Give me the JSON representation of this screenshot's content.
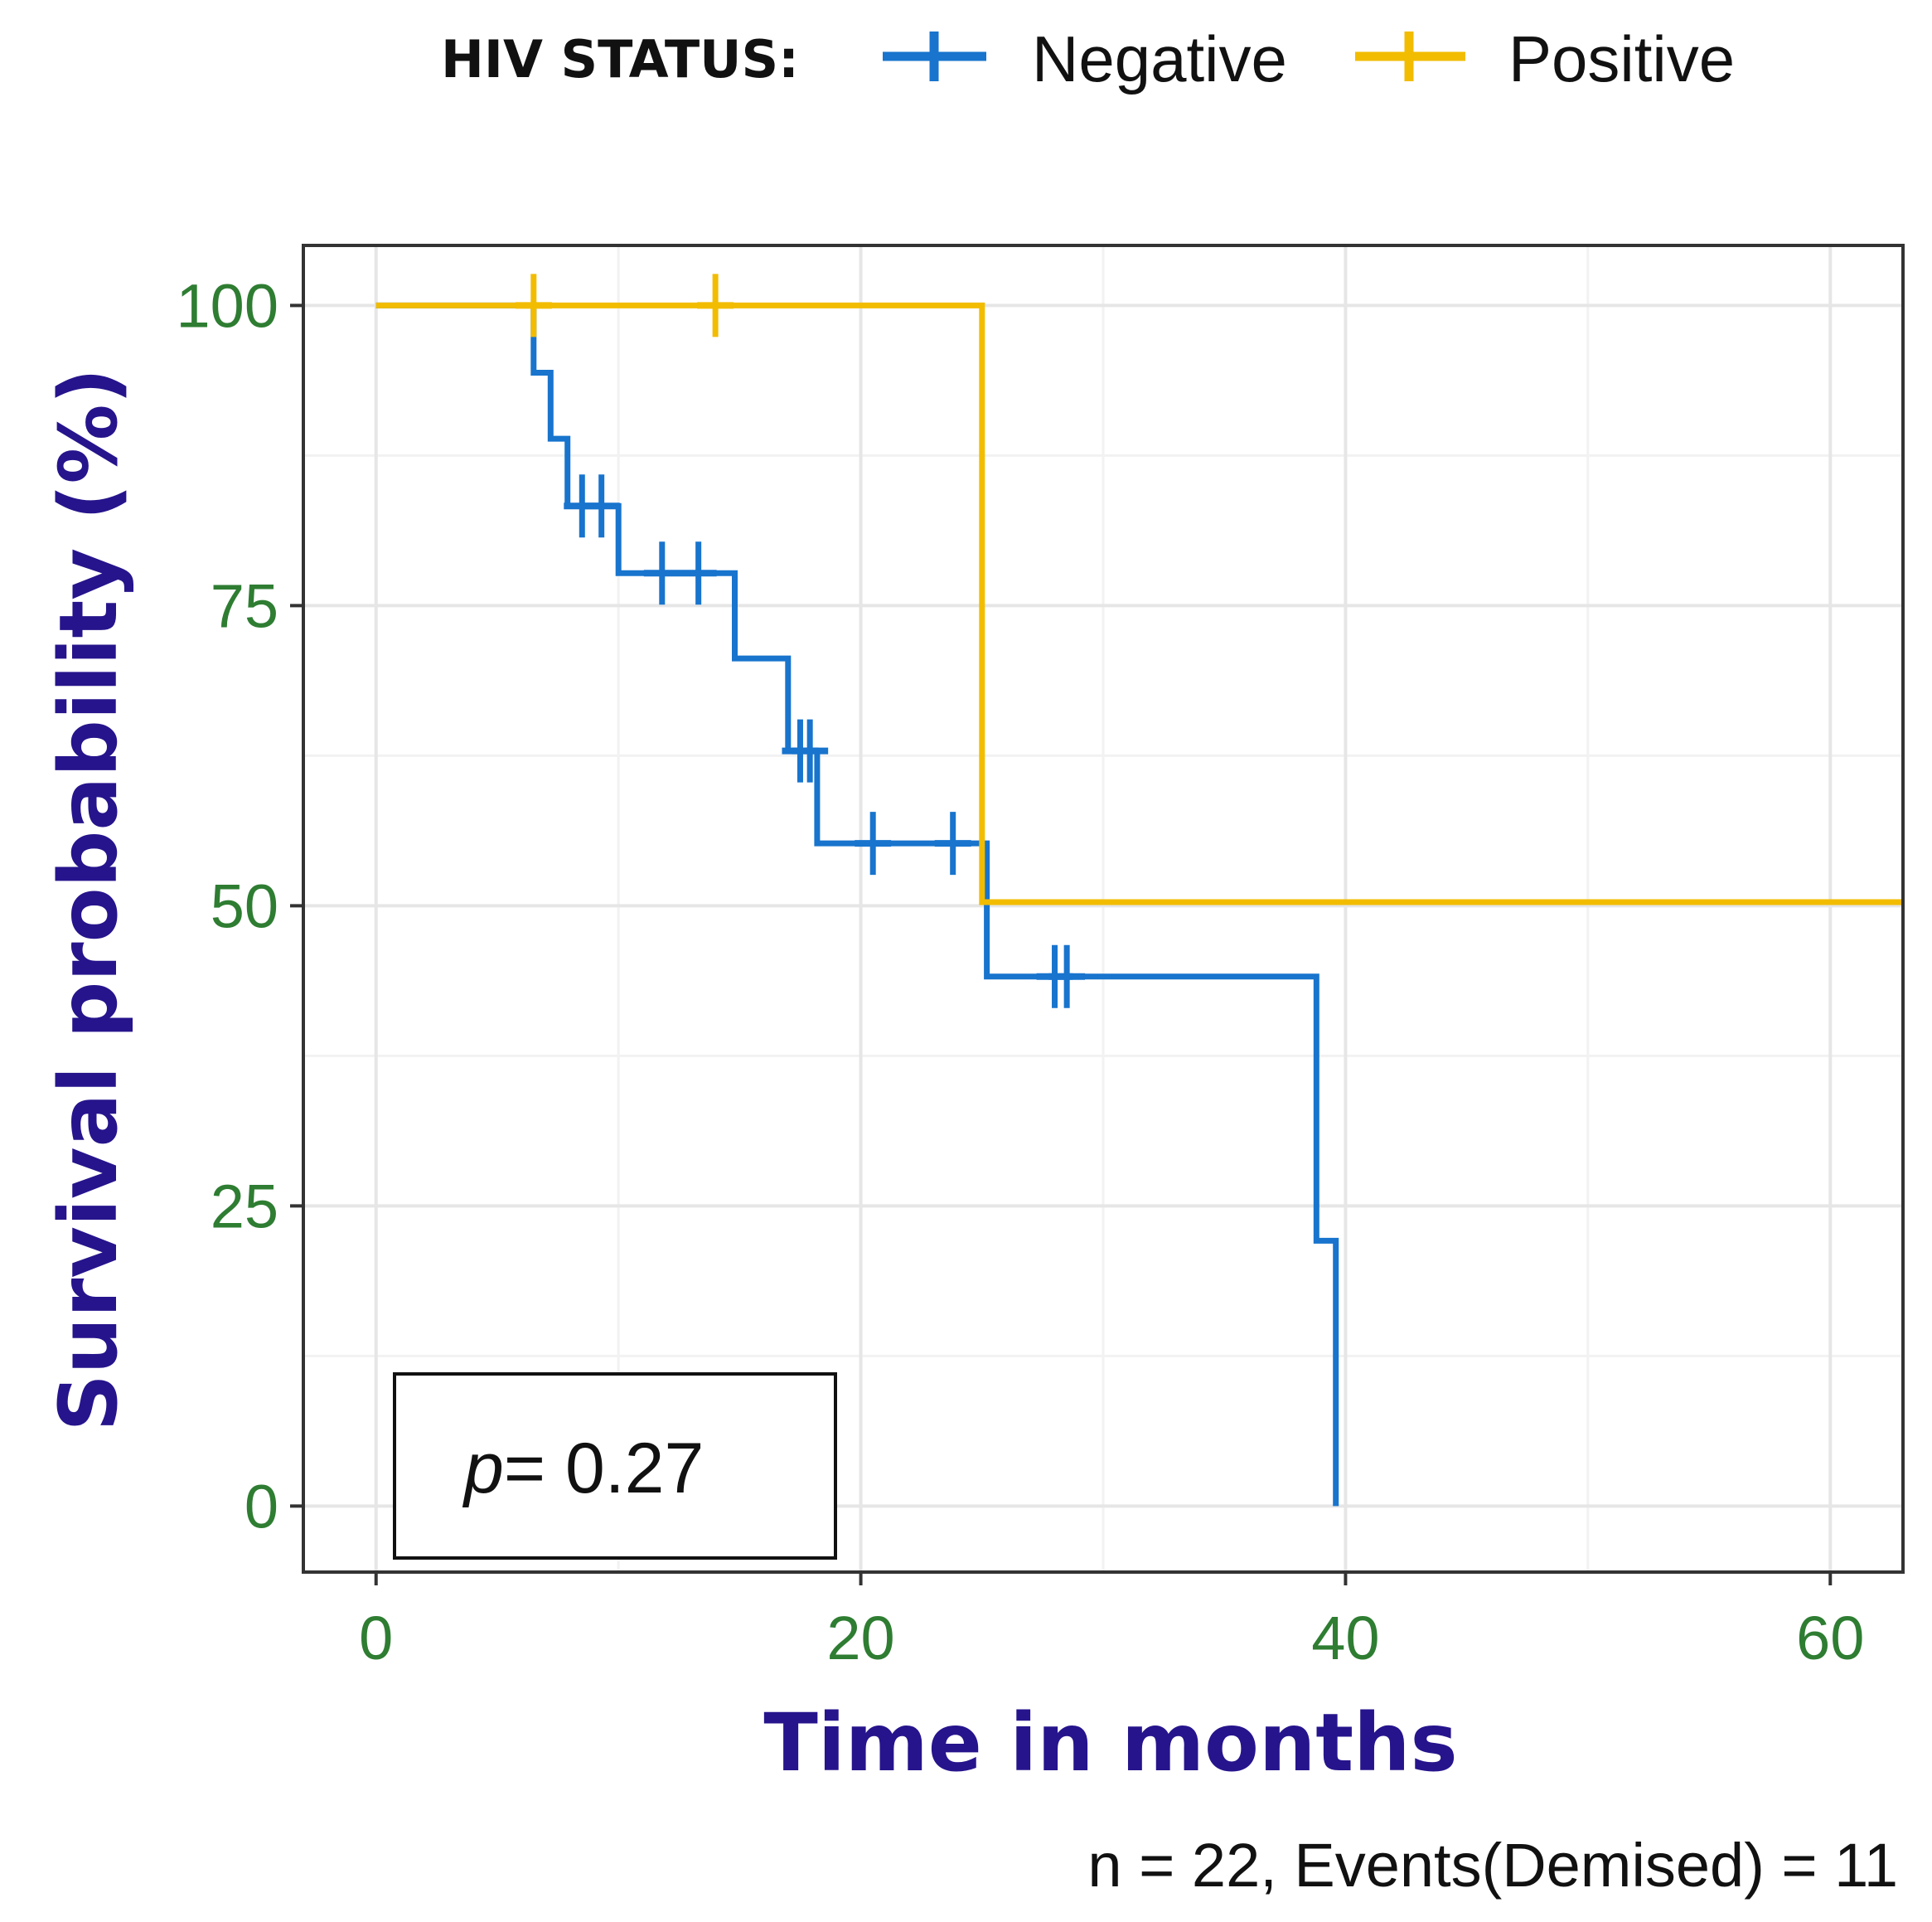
{
  "colors": {
    "negative": "#1874cd",
    "positive": "#f2bc00"
  },
  "chart_data": {
    "type": "line",
    "subtype": "kaplan-meier",
    "legend_title": "HIV STATUS:",
    "legend_position": "top",
    "xlabel": "Time in months",
    "ylabel": "Survival probability (%)",
    "xlim": [
      -3,
      63
    ],
    "ylim": [
      -5.5,
      105
    ],
    "x_ticks": [
      0,
      20,
      40,
      60
    ],
    "y_ticks": [
      0,
      25,
      50,
      75,
      100
    ],
    "grid": true,
    "caption": "n = 22, Events(Demised) = 11",
    "pvalue": {
      "label": "p",
      "text": "= 0.27"
    },
    "series": [
      {
        "name": "Negative",
        "color_key": "negative",
        "steps": [
          [
            0,
            100
          ],
          [
            6.5,
            100
          ],
          [
            6.5,
            94.4
          ],
          [
            7.2,
            94.4
          ],
          [
            7.2,
            88.9
          ],
          [
            7.9,
            88.9
          ],
          [
            7.9,
            83.3
          ],
          [
            10,
            83.3
          ],
          [
            10,
            77.7
          ],
          [
            14.8,
            77.7
          ],
          [
            14.8,
            70.6
          ],
          [
            17,
            70.6
          ],
          [
            17,
            62.9
          ],
          [
            18.2,
            62.9
          ],
          [
            18.2,
            55.2
          ],
          [
            25.2,
            55.2
          ],
          [
            25.2,
            44.1
          ],
          [
            38.8,
            44.1
          ],
          [
            38.8,
            22.1
          ],
          [
            39.6,
            22.1
          ],
          [
            39.6,
            0
          ]
        ],
        "censor": [
          [
            8.5,
            83.3
          ],
          [
            9.3,
            83.3
          ],
          [
            11.8,
            77.7
          ],
          [
            13.3,
            77.7
          ],
          [
            17.5,
            62.9
          ],
          [
            17.9,
            62.9
          ],
          [
            20.5,
            55.2
          ],
          [
            23.8,
            55.2
          ],
          [
            28,
            44.1
          ],
          [
            28.5,
            44.1
          ]
        ]
      },
      {
        "name": "Positive",
        "color_key": "positive",
        "steps": [
          [
            0,
            100
          ],
          [
            25,
            100
          ],
          [
            25,
            50.3
          ],
          [
            63,
            50.3
          ]
        ],
        "censor": [
          [
            6.5,
            100
          ],
          [
            14,
            100
          ]
        ]
      }
    ]
  }
}
